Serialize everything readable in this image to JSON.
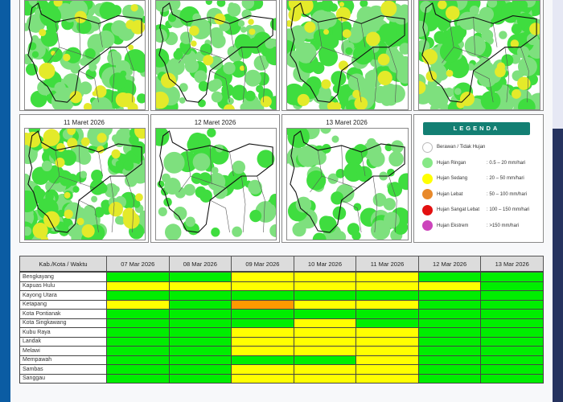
{
  "maps": [
    {
      "title": ""
    },
    {
      "title": ""
    },
    {
      "title": ""
    },
    {
      "title": ""
    },
    {
      "title": "11 Maret 2026"
    },
    {
      "title": "12 Maret 2026"
    },
    {
      "title": "13 Maret 2026"
    }
  ],
  "legend": {
    "title": "LEGENDA",
    "items": [
      {
        "label": "Berawan / Tidak Hujan",
        "range": "",
        "color": "#ffffff"
      },
      {
        "label": "Hujan Ringan",
        "range": ": 0.5 – 20 mm/hari",
        "color": "#86e886"
      },
      {
        "label": "Hujan Sedang",
        "range": ": 20 – 50 mm/hari",
        "color": "#ffff00"
      },
      {
        "label": "Hujan Lebat",
        "range": ": 50 – 100 mm/hari",
        "color": "#e8892a"
      },
      {
        "label": "Hujan Sangat Lebat",
        "range": ": 100 – 150 mm/hari",
        "color": "#e31010"
      },
      {
        "label": "Hujan Ekstrem",
        "range": ": >150 mm/hari",
        "color": "#cc44bb"
      }
    ]
  },
  "table": {
    "header": "Kab./Kota / Waktu",
    "dates": [
      "07 Mar 2026",
      "08 Mar 2026",
      "09 Mar 2026",
      "10 Mar 2026",
      "11 Mar 2026",
      "12 Mar 2026",
      "13 Mar 2026"
    ],
    "category_colors": {
      "R": "#00ee00",
      "S": "#ffff00",
      "L": "#ff9900"
    },
    "rows": [
      {
        "name": "Bengkayang",
        "values": [
          "R",
          "R",
          "S",
          "S",
          "S",
          "R",
          "R"
        ]
      },
      {
        "name": "Kapuas Hulu",
        "values": [
          "S",
          "S",
          "S",
          "S",
          "S",
          "S",
          "R"
        ]
      },
      {
        "name": "Kayong Utara",
        "values": [
          "R",
          "R",
          "R",
          "R",
          "R",
          "R",
          "R"
        ]
      },
      {
        "name": "Ketapang",
        "values": [
          "S",
          "R",
          "L",
          "S",
          "S",
          "R",
          "R"
        ]
      },
      {
        "name": "Kota Pontianak",
        "values": [
          "R",
          "R",
          "R",
          "R",
          "R",
          "R",
          "R"
        ]
      },
      {
        "name": "Kota Singkawang",
        "values": [
          "R",
          "R",
          "R",
          "S",
          "R",
          "R",
          "R"
        ]
      },
      {
        "name": "Kubu Raya",
        "values": [
          "R",
          "R",
          "S",
          "S",
          "S",
          "R",
          "R"
        ]
      },
      {
        "name": "Landak",
        "values": [
          "R",
          "R",
          "S",
          "S",
          "S",
          "R",
          "R"
        ]
      },
      {
        "name": "Melawi",
        "values": [
          "R",
          "R",
          "S",
          "S",
          "S",
          "R",
          "R"
        ]
      },
      {
        "name": "Mempawah",
        "values": [
          "R",
          "R",
          "R",
          "R",
          "S",
          "R",
          "R"
        ]
      },
      {
        "name": "Sambas",
        "values": [
          "R",
          "R",
          "S",
          "S",
          "S",
          "R",
          "R"
        ]
      },
      {
        "name": "Sanggau",
        "values": [
          "R",
          "R",
          "S",
          "S",
          "S",
          "R",
          "R"
        ]
      }
    ]
  }
}
